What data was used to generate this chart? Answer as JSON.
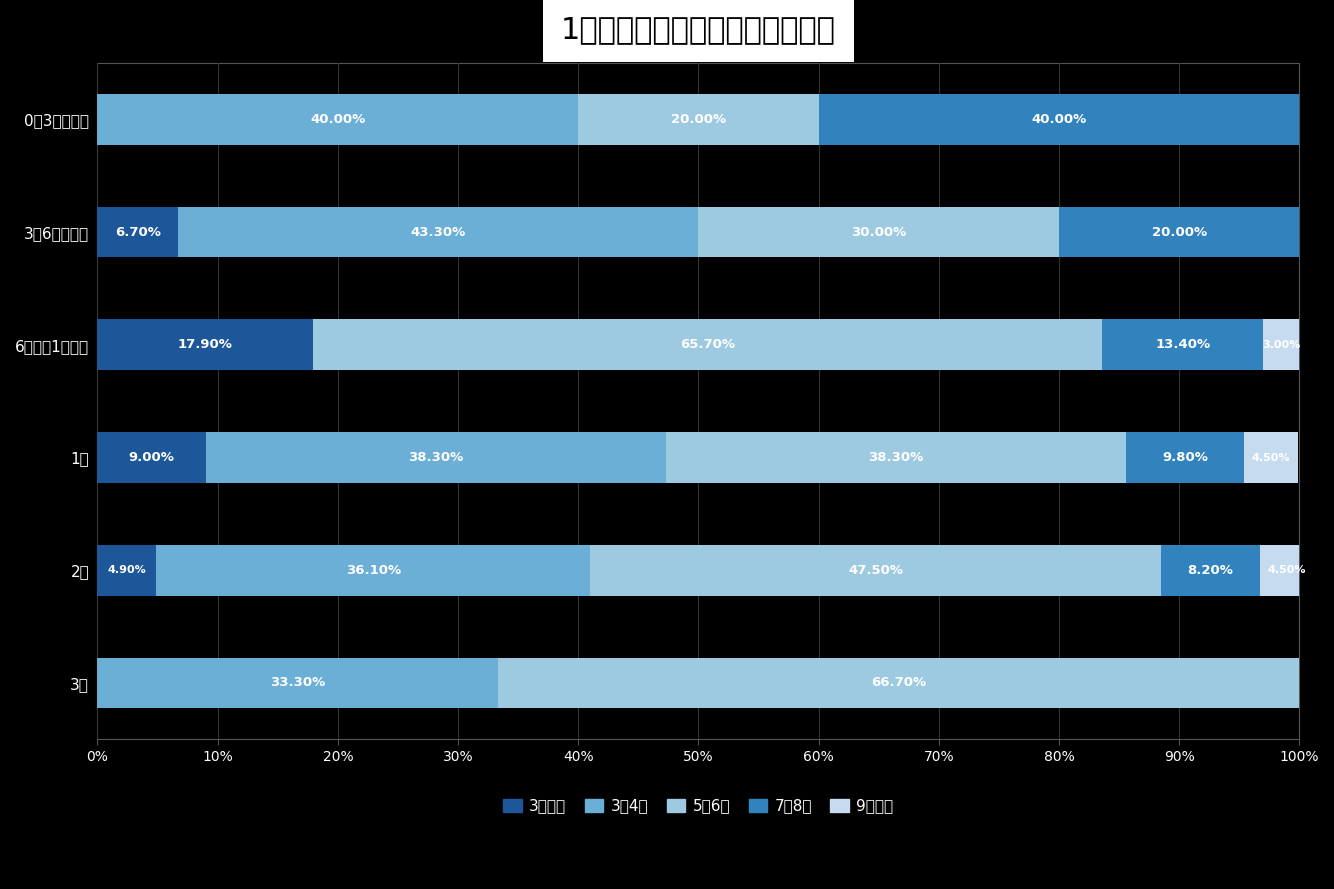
{
  "title": "1日のおむつ交換回数（年齢別）",
  "categories": [
    "0～3カ月未満",
    "3～6カ月未満",
    "6カ月～1歳未満",
    "1歳",
    "2歳",
    "3歳"
  ],
  "series": [
    {
      "label": "3回未満",
      "color": "#1e5799",
      "values": [
        0.0,
        6.7,
        17.9,
        9.0,
        4.9,
        0.0
      ]
    },
    {
      "label": "3～4回",
      "color": "#6baed6",
      "values": [
        40.0,
        43.3,
        0.0,
        38.3,
        36.1,
        33.3
      ]
    },
    {
      "label": "5～6回",
      "color": "#9ecae1",
      "values": [
        20.0,
        30.0,
        65.7,
        38.3,
        47.5,
        66.7
      ]
    },
    {
      "label": "7～8回",
      "color": "#3182bd",
      "values": [
        40.0,
        20.0,
        13.4,
        9.8,
        8.2,
        0.0
      ]
    },
    {
      "label": "9回以上",
      "color": "#c6dbef",
      "values": [
        0.0,
        0.0,
        3.0,
        4.5,
        4.5,
        0.0
      ]
    }
  ],
  "label_map": [
    [
      [
        "",
        false
      ],
      [
        "40.00%",
        true
      ],
      [
        "20.00%",
        true
      ],
      [
        "40.00%",
        true
      ],
      [
        "",
        false
      ]
    ],
    [
      [
        "6.70%",
        true
      ],
      [
        "43.30%",
        true
      ],
      [
        "30.00%",
        true
      ],
      [
        "20.00%",
        true
      ],
      [
        "",
        false
      ]
    ],
    [
      [
        "17.90%",
        true
      ],
      [
        "",
        false
      ],
      [
        "65.70%",
        true
      ],
      [
        "13.40%",
        true
      ],
      [
        "3.00%",
        true
      ]
    ],
    [
      [
        "9.00%",
        true
      ],
      [
        "38.30%",
        true
      ],
      [
        "38.30%",
        true
      ],
      [
        "9.80%",
        true
      ],
      [
        "4.50%",
        true
      ]
    ],
    [
      [
        "4.90%",
        true
      ],
      [
        "36.10%",
        true
      ],
      [
        "47.50%",
        true
      ],
      [
        "8.20%",
        true
      ],
      [
        "4.50%",
        true
      ]
    ],
    [
      [
        "",
        false
      ],
      [
        "33.30%",
        true
      ],
      [
        "66.70%",
        true
      ],
      [
        "",
        false
      ],
      [
        "",
        false
      ]
    ]
  ],
  "background_color": "#000000",
  "plot_background": "#000000",
  "title_box_color": "#ffffff",
  "title_text_color": "#000000",
  "label_color": "#ffffff",
  "axis_label_color": "#ffffff",
  "tick_color": "#ffffff",
  "grid_color": "#333333",
  "bar_height": 0.45,
  "xlim": [
    0,
    100
  ],
  "xlabel_ticks": [
    0,
    10,
    20,
    30,
    40,
    50,
    60,
    70,
    80,
    90,
    100
  ],
  "xlabel_labels": [
    "0%",
    "10%",
    "20%",
    "30%",
    "40%",
    "50%",
    "60%",
    "70%",
    "80%",
    "90%",
    "100%"
  ],
  "figsize": [
    13.34,
    8.89
  ],
  "dpi": 100
}
